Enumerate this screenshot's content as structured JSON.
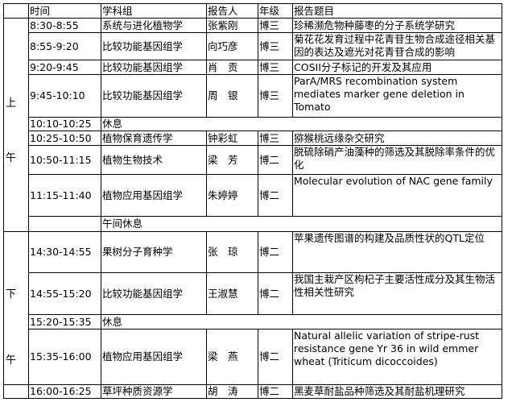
{
  "headers": {
    "period": "",
    "time": "时间",
    "group": "学科组",
    "speaker": "报告人",
    "grade": "年级",
    "topic": "报告题目"
  },
  "morning": {
    "char1": "上",
    "char2": "午"
  },
  "afternoon": {
    "char1": "下",
    "char2": "午"
  },
  "lunch": "午间休息",
  "rows": [
    {
      "time": "8:30-8:55",
      "group": "系统与进化植物学",
      "speaker": "张紫刚",
      "grade": "博三",
      "topic": "珍稀濒危物种藤枣的分子系统学研究"
    },
    {
      "time": "8:55-9:20",
      "group": "比较功能基因组学",
      "speaker": "向巧彦",
      "grade": "博三",
      "topic": "菊花花发育过程中花青苷生物合成途径相关基因的表达及遮光对花青苷合成的影响"
    },
    {
      "time": "9:20-9:45",
      "group": "比较功能基因组学",
      "speaker": "肖　贡",
      "grade": "博三",
      "topic": "COSII分子标记的开发及其应用"
    },
    {
      "time": "9:45-10:10",
      "group": "比较功能基因组学",
      "speaker": "周　银",
      "grade": "博三",
      "topic": "ParA/MRS recombination system mediates marker gene deletion in Tomato"
    },
    {
      "time": "10:10-10:25",
      "break": "休息"
    },
    {
      "time": "10:25-10:50",
      "group": "植物保育遗传学",
      "speaker": "钟彩虹",
      "grade": "博三",
      "topic": "猕猴桃远缘杂交研究"
    },
    {
      "time": "10:50-11:15",
      "group": "植物生物技术",
      "speaker": "梁　芳",
      "grade": "博二",
      "topic": "脱硫除硝产油藻种的筛选及其脱除率条件的优化"
    },
    {
      "time": "11:15-11:40",
      "group": "植物应用基因组学",
      "speaker": "朱婷婷",
      "grade": "博二",
      "topic": "Molecular evolution of NAC gene family"
    },
    {
      "time": "14:30-14:55",
      "group": "果树分子育种学",
      "speaker": "张　琼",
      "grade": "博二",
      "topic": "苹果遗传图谱的构建及品质性状的QTL定位"
    },
    {
      "time": "14:55-15:20",
      "group": "比较功能基因组学",
      "speaker": "王淑慧",
      "grade": "博二",
      "topic": "我国主栽产区枸杞子主要活性成分及其生物活性相关性研究"
    },
    {
      "time": "15:20-15:35",
      "break": "休息"
    },
    {
      "time": "15:35-16:00",
      "group": "植物应用基因组学",
      "speaker": "梁　燕",
      "grade": "博二",
      "topic": "Natural allelic variation of stripe-rust resistance gene Yr 36 in wild emmer wheat (Triticum dicoccoides)"
    },
    {
      "time": "16:00-16:25",
      "group": "草坪种质资源学",
      "speaker": "胡　涛",
      "grade": "博二",
      "topic": "黑麦草耐盐品种筛选及其耐盐机理研究"
    }
  ]
}
